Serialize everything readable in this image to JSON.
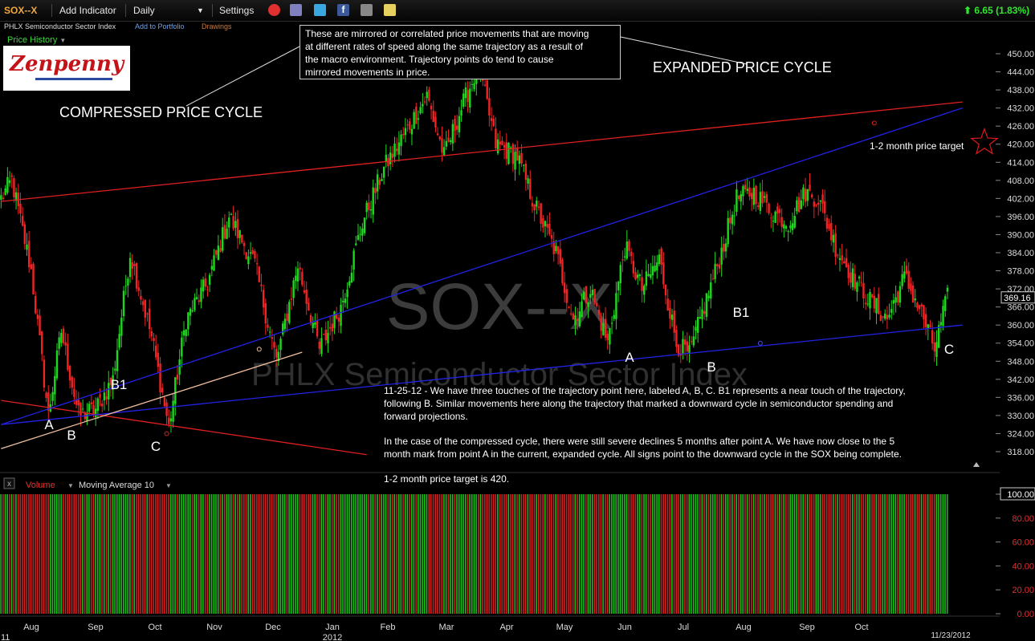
{
  "toolbar": {
    "symbol": "SOX--X",
    "add_indicator": "Add Indicator",
    "interval": "Daily",
    "settings": "Settings",
    "change": "6.65 (1.83%)"
  },
  "subbar": {
    "name": "PHLX Semiconductor Sector Index",
    "add_portfolio": "Add to Portfolio",
    "drawings": "Drawings",
    "price_history": "Price History"
  },
  "logo": {
    "text": "Zenpenny"
  },
  "watermark": {
    "symbol": "SOX--X",
    "name": "PHLX Semiconductor Sector Index"
  },
  "annotations": {
    "callout": [
      "These are mirrored or correlated price movements that are moving",
      "at different rates of speed along the same trajectory as a result of",
      "the macro environment. Trajectory points do tend to cause",
      "mirrored movements in price."
    ],
    "compressed": "COMPRESSED PRICE CYCLE",
    "expanded": "EXPANDED PRICE CYCLE",
    "target_label": "1-2 month price target",
    "note1": [
      "11-25-12 - We have three touches of the trajectory point here, labeled A, B, C. B1 represents a near touch of the trajectory,",
      "following B. Similar movements here along the trajectory that marked a downward cycle in semiconductor spending and",
      "forward projections."
    ],
    "note2": [
      "In the case of the compressed cycle, there were still severe declines 5 months after point A. We have now close to the 5",
      "month mark from point A in the current, expanded cycle. All signs point to the downward cycle in the SOX being complete."
    ],
    "note3": "1-2 month price target is 420.",
    "points": [
      {
        "label": "A",
        "x": 61,
        "y": 535
      },
      {
        "label": "B",
        "x": 89,
        "y": 548
      },
      {
        "label": "B1",
        "x": 148,
        "y": 485
      },
      {
        "label": "C",
        "x": 194,
        "y": 562
      },
      {
        "label": "A",
        "x": 784,
        "y": 451
      },
      {
        "label": "B",
        "x": 886,
        "y": 463
      },
      {
        "label": "B1",
        "x": 923,
        "y": 395
      },
      {
        "label": "C",
        "x": 1182,
        "y": 441
      }
    ]
  },
  "volume_panel": {
    "label": "Volume",
    "ma": "Moving Average 10",
    "close_label": "x"
  },
  "chart_data": {
    "type": "candlestick",
    "symbol": "SOX--X",
    "last_price": "369.16",
    "y_ticks": [
      "450.00",
      "444.00",
      "438.00",
      "432.00",
      "426.00",
      "420.00",
      "414.00",
      "408.00",
      "402.00",
      "396.00",
      "390.00",
      "384.00",
      "378.00",
      "372.00",
      "366.00",
      "360.00",
      "354.00",
      "348.00",
      "342.00",
      "336.00",
      "330.00",
      "324.00",
      "318.00"
    ],
    "volume_ticks": [
      "100.00",
      "80.00",
      "60.00",
      "40.00",
      "20.00",
      "0.00"
    ],
    "x_labels": [
      "Aug",
      "Sep",
      "Oct",
      "Nov",
      "Dec",
      "Jan",
      "Feb",
      "Mar",
      "Apr",
      "May",
      "Jun",
      "Jul",
      "Aug",
      "Sep",
      "Oct"
    ],
    "x_sub": {
      "left": "11",
      "year": "2012",
      "date": "11/23/2012"
    },
    "ylim": [
      316,
      452
    ],
    "key_prices": [
      {
        "day": 0,
        "price": 402
      },
      {
        "day": 5,
        "price": 408
      },
      {
        "day": 14,
        "price": 378
      },
      {
        "day": 22,
        "price": 330
      },
      {
        "day": 28,
        "price": 358
      },
      {
        "day": 36,
        "price": 330
      },
      {
        "day": 44,
        "price": 332
      },
      {
        "day": 52,
        "price": 342
      },
      {
        "day": 60,
        "price": 384
      },
      {
        "day": 70,
        "price": 356
      },
      {
        "day": 78,
        "price": 326
      },
      {
        "day": 86,
        "price": 362
      },
      {
        "day": 96,
        "price": 374
      },
      {
        "day": 106,
        "price": 396
      },
      {
        "day": 118,
        "price": 380
      },
      {
        "day": 128,
        "price": 348
      },
      {
        "day": 138,
        "price": 380
      },
      {
        "day": 148,
        "price": 352
      },
      {
        "day": 158,
        "price": 366
      },
      {
        "day": 168,
        "price": 394
      },
      {
        "day": 178,
        "price": 412
      },
      {
        "day": 188,
        "price": 424
      },
      {
        "day": 198,
        "price": 436
      },
      {
        "day": 206,
        "price": 416
      },
      {
        "day": 214,
        "price": 432
      },
      {
        "day": 222,
        "price": 446
      },
      {
        "day": 230,
        "price": 420
      },
      {
        "day": 240,
        "price": 416
      },
      {
        "day": 248,
        "price": 400
      },
      {
        "day": 258,
        "price": 384
      },
      {
        "day": 266,
        "price": 362
      },
      {
        "day": 274,
        "price": 372
      },
      {
        "day": 282,
        "price": 354
      },
      {
        "day": 290,
        "price": 386
      },
      {
        "day": 298,
        "price": 372
      },
      {
        "day": 306,
        "price": 382
      },
      {
        "day": 314,
        "price": 354
      },
      {
        "day": 320,
        "price": 350
      },
      {
        "day": 326,
        "price": 364
      },
      {
        "day": 334,
        "price": 382
      },
      {
        "day": 342,
        "price": 402
      },
      {
        "day": 350,
        "price": 404
      },
      {
        "day": 358,
        "price": 398
      },
      {
        "day": 366,
        "price": 394
      },
      {
        "day": 374,
        "price": 404
      },
      {
        "day": 380,
        "price": 402
      },
      {
        "day": 388,
        "price": 386
      },
      {
        "day": 396,
        "price": 376
      },
      {
        "day": 404,
        "price": 368
      },
      {
        "day": 412,
        "price": 362
      },
      {
        "day": 420,
        "price": 376
      },
      {
        "day": 428,
        "price": 364
      },
      {
        "day": 434,
        "price": 352
      },
      {
        "day": 440,
        "price": 369.16
      }
    ],
    "trendlines": [
      {
        "name": "upper-red",
        "color": "#e0201e",
        "p1": [
          0,
          401
        ],
        "p2": [
          447,
          434
        ]
      },
      {
        "name": "lower-red",
        "color": "#e0201e",
        "p1": [
          0,
          335
        ],
        "p2": [
          170,
          317
        ]
      },
      {
        "name": "blue-steep",
        "color": "#2222e8",
        "p1": [
          0,
          327
        ],
        "p2": [
          447,
          432
        ]
      },
      {
        "name": "blue-flat",
        "color": "#2222e8",
        "p1": [
          0,
          327
        ],
        "p2": [
          447,
          360
        ]
      },
      {
        "name": "peach",
        "color": "#f0c0a0",
        "p1": [
          0,
          319
        ],
        "p2": [
          140,
          351
        ]
      }
    ],
    "target": {
      "price": 420
    }
  }
}
